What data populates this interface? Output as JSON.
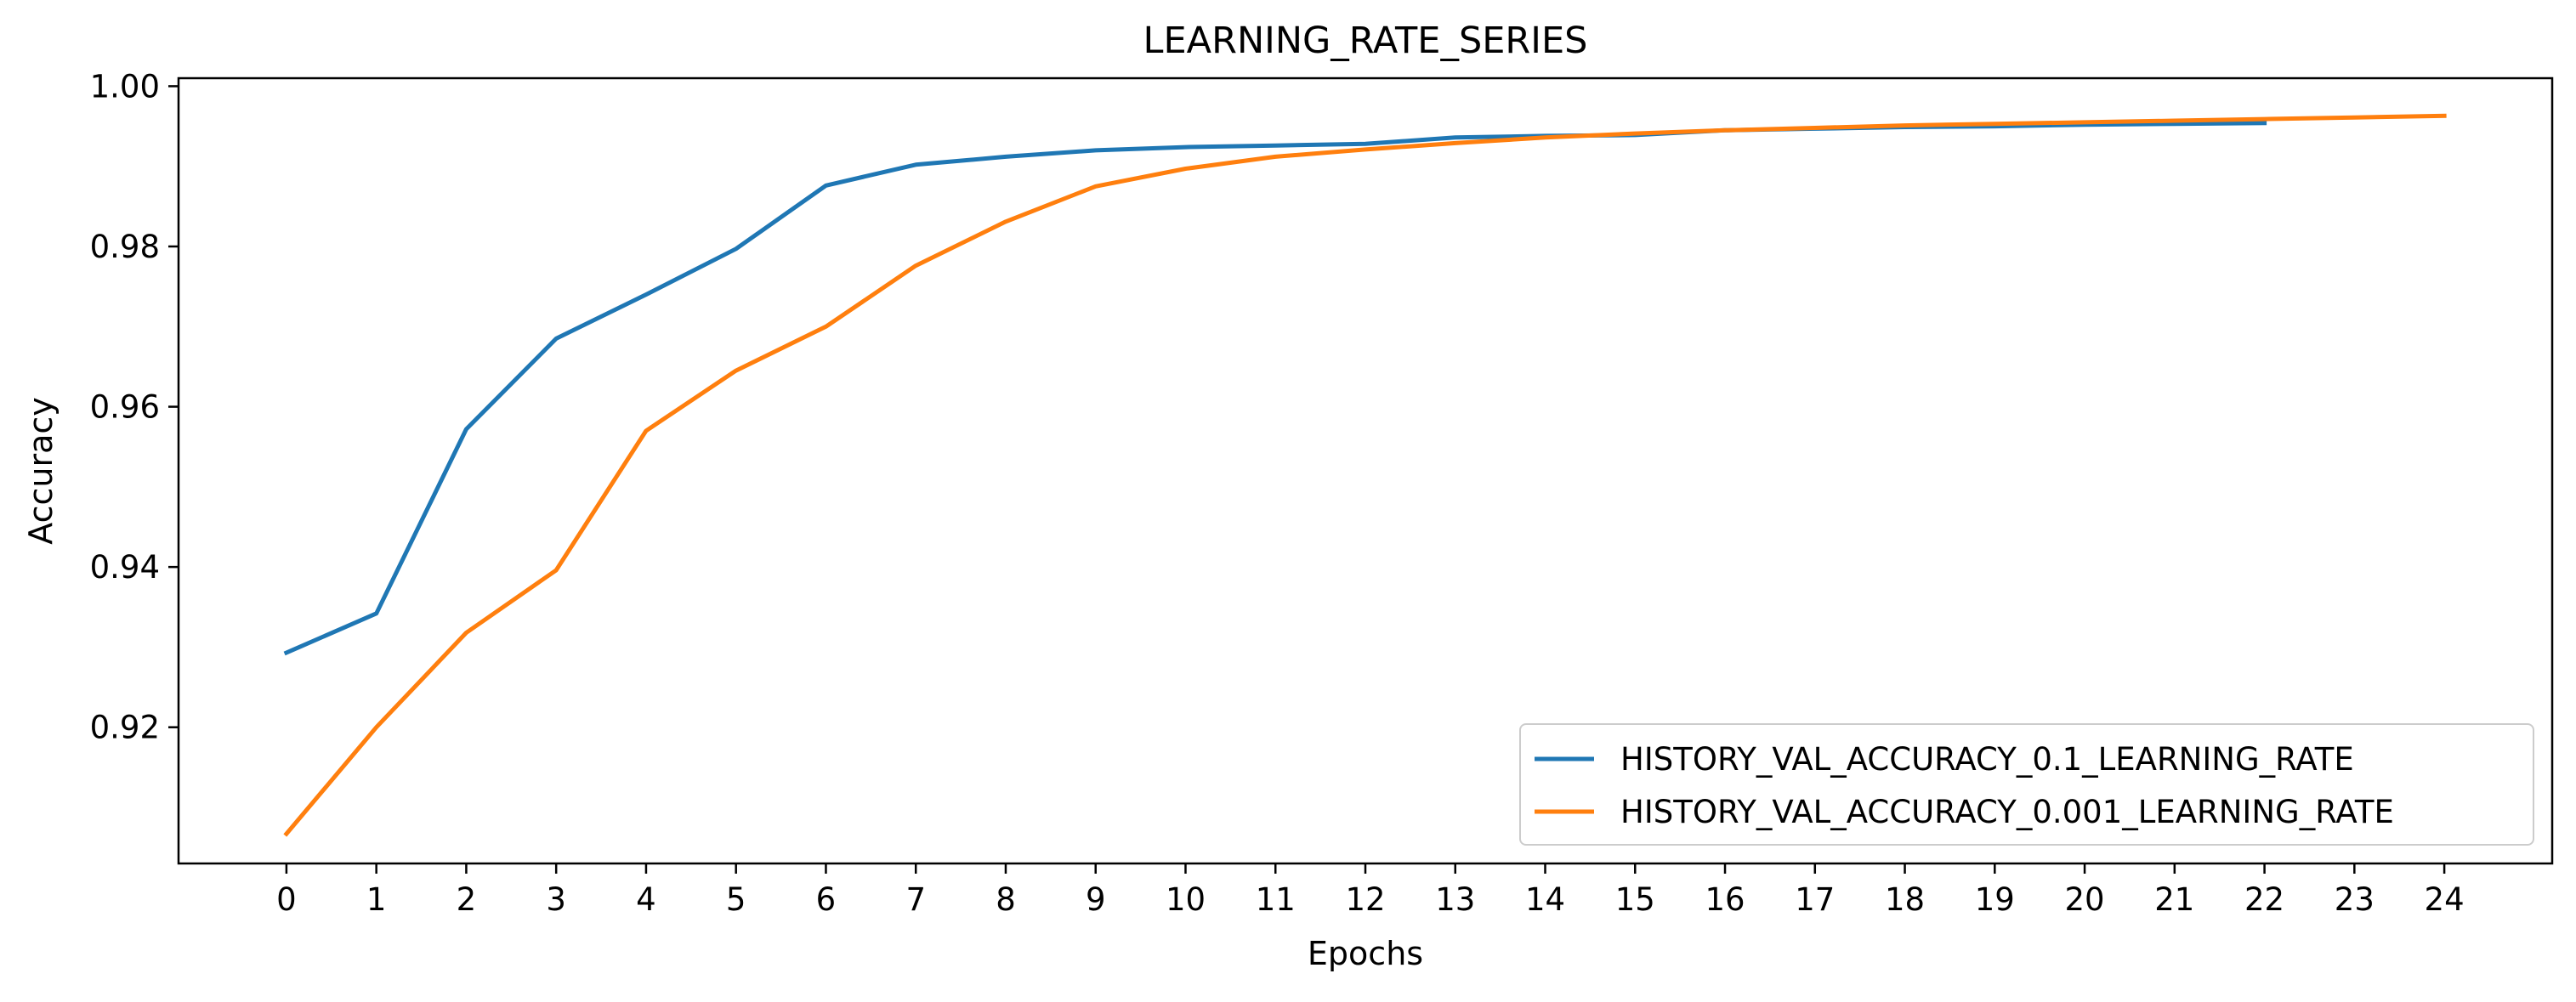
{
  "chart_data": {
    "type": "line",
    "title": "LEARNING_RATE_SERIES",
    "xlabel": "Epochs",
    "ylabel": "Accuracy",
    "xlim": [
      -1.2,
      25.2
    ],
    "ylim": [
      0.903,
      1.001
    ],
    "x_ticks": [
      0,
      1,
      2,
      3,
      4,
      5,
      6,
      7,
      8,
      9,
      10,
      11,
      12,
      13,
      14,
      15,
      16,
      17,
      18,
      19,
      20,
      21,
      22,
      23,
      24
    ],
    "y_ticks": [
      {
        "value": 0.92,
        "label": "0.92"
      },
      {
        "value": 0.94,
        "label": "0.94"
      },
      {
        "value": 0.96,
        "label": "0.96"
      },
      {
        "value": 0.98,
        "label": "0.98"
      },
      {
        "value": 1.0,
        "label": "1.00"
      }
    ],
    "grid": false,
    "legend_position": "lower-right",
    "series": [
      {
        "name": "HISTORY_VAL_ACCURACY_0.1_LEARNING_RATE",
        "color": "#1f77b4",
        "x": [
          0,
          1,
          2,
          3,
          4,
          5,
          6,
          7,
          8,
          9,
          10,
          11,
          12,
          13,
          14,
          15,
          16,
          17,
          18,
          19,
          20,
          21,
          22
        ],
        "values": [
          0.9293,
          0.9342,
          0.9572,
          0.9685,
          0.974,
          0.9797,
          0.9876,
          0.9902,
          0.9912,
          0.992,
          0.9924,
          0.9926,
          0.9928,
          0.9936,
          0.9938,
          0.9939,
          0.9945,
          0.9947,
          0.9949,
          0.995,
          0.9952,
          0.9953,
          0.9954
        ]
      },
      {
        "name": "HISTORY_VAL_ACCURACY_0.001_LEARNING_RATE",
        "color": "#ff7f0e",
        "x": [
          0,
          1,
          2,
          3,
          4,
          5,
          6,
          7,
          8,
          9,
          10,
          11,
          12,
          13,
          14,
          15,
          16,
          17,
          18,
          19,
          20,
          21,
          22,
          23,
          24
        ],
        "values": [
          0.9067,
          0.92,
          0.9318,
          0.9396,
          0.957,
          0.9645,
          0.97,
          0.9776,
          0.9831,
          0.9875,
          0.9897,
          0.9912,
          0.9921,
          0.9929,
          0.9936,
          0.9941,
          0.9945,
          0.9948,
          0.9951,
          0.9953,
          0.9955,
          0.9957,
          0.9959,
          0.9961,
          0.9963
        ]
      }
    ]
  }
}
